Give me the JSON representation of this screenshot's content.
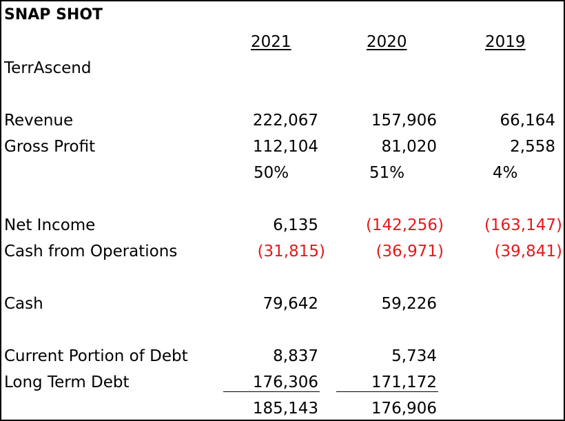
{
  "title": "SNAP SHOT",
  "company": "TerrAscend",
  "years": [
    "2021",
    "2020",
    "2019"
  ],
  "colors": {
    "negative": "#e4181c",
    "text": "#000000"
  },
  "rows": {
    "revenue": {
      "label": "Revenue",
      "values": [
        "222,067",
        "157,906",
        "66,164"
      ]
    },
    "gross_profit": {
      "label": "Gross Profit",
      "values": [
        "112,104",
        "81,020",
        "2,558"
      ]
    },
    "gross_margin": {
      "label": "",
      "values": [
        "50%",
        "51%",
        "4%"
      ]
    },
    "net_income": {
      "label": "Net Income",
      "values": [
        "6,135",
        "(142,256)",
        "(163,147)"
      ]
    },
    "cash_from_operations": {
      "label": "Cash from Operations",
      "values": [
        "(31,815)",
        "(36,971)",
        "(39,841)"
      ]
    },
    "cash": {
      "label": "Cash",
      "values": [
        "79,642",
        "59,226",
        ""
      ]
    },
    "current_portion_of_debt": {
      "label": "Current Portion of Debt",
      "values": [
        "8,837",
        "5,734",
        ""
      ]
    },
    "long_term_debt": {
      "label": "Long Term Debt",
      "values": [
        "176,306",
        "171,172",
        ""
      ]
    },
    "total_debt": {
      "label": "",
      "values": [
        "185,143",
        "176,906",
        ""
      ]
    }
  }
}
